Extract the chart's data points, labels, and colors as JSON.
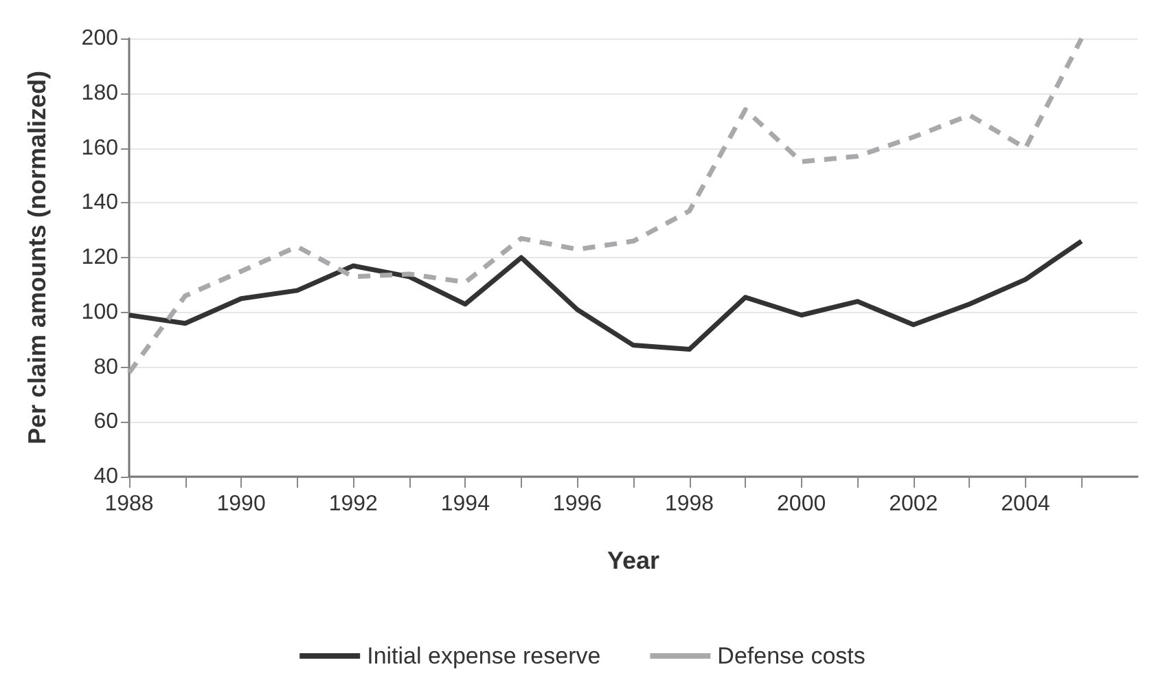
{
  "chart_data": {
    "type": "line",
    "xlabel": "Year",
    "ylabel": "Per claim amounts (normalized)",
    "x": [
      1988,
      1989,
      1990,
      1991,
      1992,
      1993,
      1994,
      1995,
      1996,
      1997,
      1998,
      1999,
      2000,
      2001,
      2002,
      2003,
      2004,
      2005
    ],
    "series": [
      {
        "name": "Initial expense reserve",
        "color": "#333333",
        "line_style": "solid",
        "values": [
          99,
          96,
          105,
          108,
          117,
          113,
          103,
          120,
          101,
          88,
          86.5,
          105.5,
          99,
          104,
          95.5,
          103,
          112,
          126
        ]
      },
      {
        "name": "Defense costs",
        "color": "#a9a9ab",
        "line_style": "dashed",
        "values": [
          78,
          106,
          115,
          124,
          113,
          114,
          111,
          127,
          123,
          126,
          137,
          174,
          155,
          157,
          164,
          172,
          160,
          200
        ]
      }
    ],
    "xlim": [
      1988,
      2006
    ],
    "xticks": [
      1988,
      {
        "value": 1989,
        "label": null
      },
      1990,
      {
        "value": 1991,
        "label": null
      },
      1992,
      {
        "value": 1993,
        "label": null
      },
      1994,
      {
        "value": 1995,
        "label": null
      },
      1996,
      {
        "value": 1997,
        "label": null
      },
      1998,
      {
        "value": 1999,
        "label": null
      },
      2000,
      {
        "value": 2001,
        "label": null
      },
      2002,
      {
        "value": 2003,
        "label": null
      },
      2004,
      {
        "value": 2005,
        "label": null
      }
    ],
    "ylim": [
      40,
      200
    ],
    "yticks": [
      40,
      60,
      80,
      100,
      120,
      140,
      160,
      180,
      200
    ],
    "grid": "y",
    "legend": "bottom",
    "marker": "none"
  }
}
